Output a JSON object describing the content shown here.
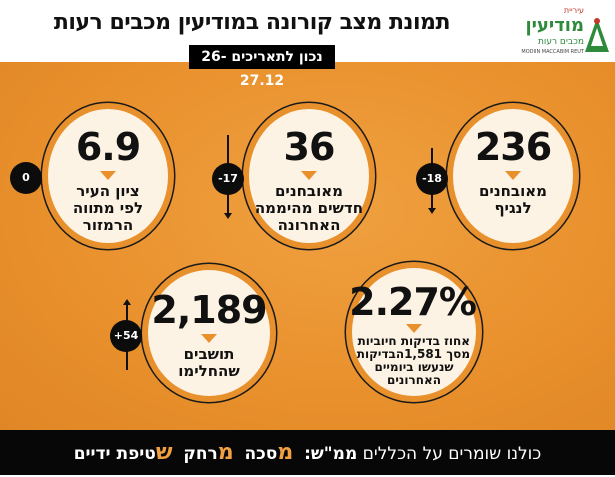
{
  "header": {
    "title": "תמונת מצב קורונה במודיעין מכבים רעות",
    "date": "נכון לתאריכים 26-27.12"
  },
  "logo": {
    "line1": "עיריית",
    "line2": "מודיעין",
    "line3": "מכבים רעות",
    "line4": "MODIIN MACCABIM REUT"
  },
  "stats": [
    {
      "value": "236",
      "label": [
        "מאובחנים",
        "לנגיף"
      ],
      "change": "-18",
      "direction": "down"
    },
    {
      "value": "36",
      "label": [
        "מאובחנים",
        "חדשים מהיממה",
        "האחרונה"
      ],
      "change": "-17",
      "direction": "down"
    },
    {
      "value": "6.9",
      "label": [
        "ציון העיר",
        "לפי מתווה",
        "הרמזור"
      ],
      "change": "0",
      "direction": "none"
    },
    {
      "value": "2.27%",
      "label": [
        "אחוז בדיקות חיוביות",
        "מסך 1,581הבדיקות",
        "שנעשו ביומיים",
        "האחרונים"
      ]
    },
    {
      "value": "2,189",
      "label": [
        "תושבים",
        "שהחלימו"
      ],
      "change": "+54",
      "direction": "up"
    }
  ],
  "footer": {
    "intro": "כולנו שומרים על הכללים",
    "acronym": "ממ\"ש:",
    "m1": "מ",
    "w1": "סכה",
    "m2": "מ",
    "w2": "רחק",
    "m3": "ש",
    "w3": "טיפת ידיים"
  },
  "colors": {
    "accent": "#e8902c",
    "dark": "#0c0c0c",
    "circle_fill": "#fdf3e4"
  }
}
